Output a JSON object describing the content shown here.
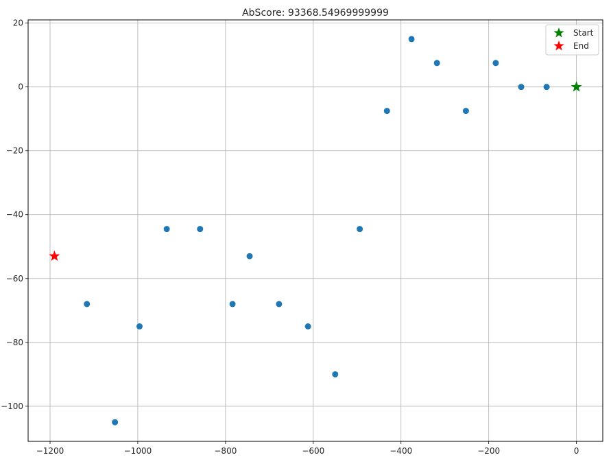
{
  "chart_data": {
    "type": "scatter",
    "title": "AbScore: 93368.54969999999",
    "xlabel": "",
    "ylabel": "",
    "xlim": [
      -1250,
      60
    ],
    "ylim": [
      -111,
      21
    ],
    "xticks": [
      -1200,
      -1000,
      -800,
      -600,
      -400,
      -200,
      0
    ],
    "yticks": [
      20,
      0,
      -20,
      -40,
      -60,
      -80,
      -100
    ],
    "grid": true,
    "legend_position": "top-right",
    "colors": {
      "points": "#1f77b4",
      "start": "#008000",
      "end": "#ff0000",
      "grid": "#b0b0b0",
      "axis": "#000000"
    },
    "points": [
      {
        "x": -1116,
        "y": -68
      },
      {
        "x": -1052,
        "y": -105
      },
      {
        "x": -996,
        "y": -75
      },
      {
        "x": -934,
        "y": -44.5
      },
      {
        "x": -858,
        "y": -44.5
      },
      {
        "x": -784,
        "y": -68
      },
      {
        "x": -745,
        "y": -53
      },
      {
        "x": -678,
        "y": -68
      },
      {
        "x": -612,
        "y": -75
      },
      {
        "x": -550,
        "y": -90
      },
      {
        "x": -494,
        "y": -44.5
      },
      {
        "x": -432,
        "y": -7.5
      },
      {
        "x": -376,
        "y": 15
      },
      {
        "x": -318,
        "y": 7.5
      },
      {
        "x": -252,
        "y": -7.5
      },
      {
        "x": -184,
        "y": 7.5
      },
      {
        "x": -126,
        "y": 0
      },
      {
        "x": -68,
        "y": 0
      }
    ],
    "start": {
      "x": 0,
      "y": 0,
      "label": "Start"
    },
    "end": {
      "x": -1190,
      "y": -53,
      "label": "End"
    }
  }
}
